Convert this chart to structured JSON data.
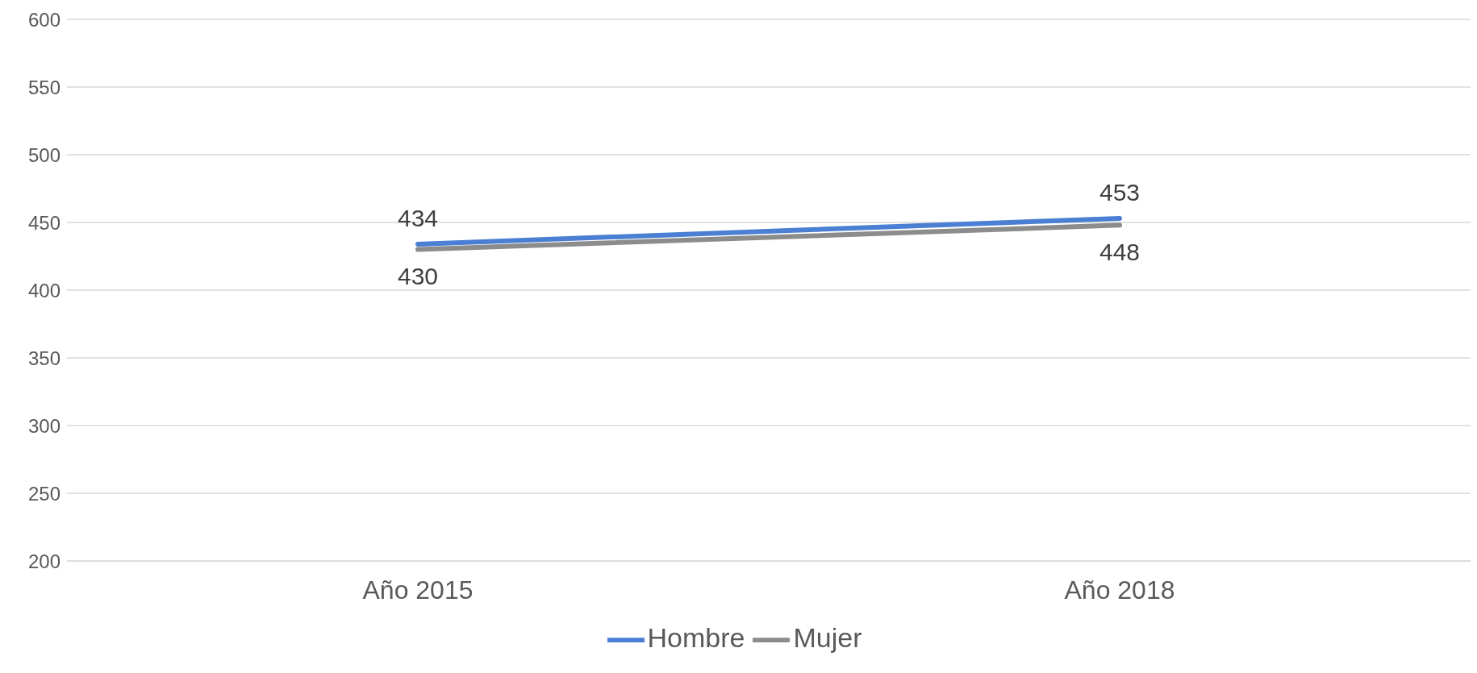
{
  "chart_data": {
    "type": "line",
    "categories": [
      "Año 2015",
      "Año 2018"
    ],
    "series": [
      {
        "name": "Hombre",
        "color": "#4a7fd4",
        "values": [
          434,
          453
        ]
      },
      {
        "name": "Mujer",
        "color": "#8c8c8c",
        "values": [
          430,
          448
        ]
      }
    ],
    "ylim": [
      200,
      600
    ],
    "yticks": [
      200,
      250,
      300,
      350,
      400,
      450,
      500,
      550,
      600
    ],
    "grid": "y",
    "legend": "bottom",
    "data_labels": true
  }
}
